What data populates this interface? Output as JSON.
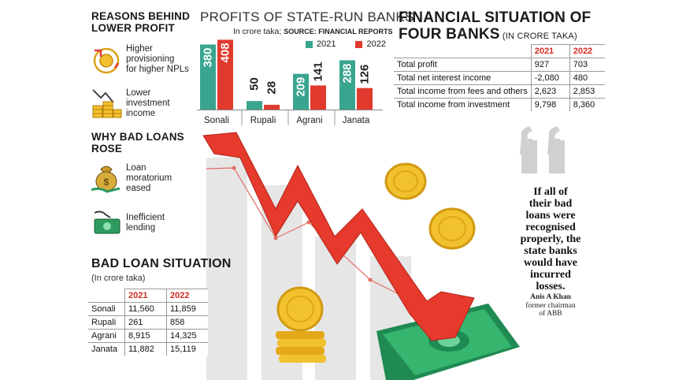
{
  "left": {
    "reasons_title_1": "REASONS BEHIND",
    "reasons_title_2": "LOWER PROFIT",
    "reasons": [
      {
        "icon": "provisioning-icon",
        "text_1": "Higher",
        "text_2": "provisioning",
        "text_3": "for higher NPLs"
      },
      {
        "icon": "coin-stack-icon",
        "text_1": "Lower",
        "text_2": "investment",
        "text_3": "income"
      }
    ],
    "why_title_1": "WHY BAD LOANS",
    "why_title_2": "ROSE",
    "why": [
      {
        "icon": "money-bag-icon",
        "text_1": "Loan",
        "text_2": "moratorium",
        "text_3": "eased"
      },
      {
        "icon": "cash-hand-icon",
        "text_1": "Inefficient",
        "text_2": "lending"
      }
    ]
  },
  "bad_loan": {
    "title": "BAD LOAN SITUATION",
    "subtitle": "(In crore taka)",
    "years": [
      "2021",
      "2022"
    ],
    "rows": [
      {
        "bank": "Sonali",
        "v2021": "11,560",
        "v2022": "11,859"
      },
      {
        "bank": "Rupali",
        "v2021": "261",
        "v2022": "858"
      },
      {
        "bank": "Agrani",
        "v2021": "8,915",
        "v2022": "14,325"
      },
      {
        "bank": "Janata",
        "v2021": "11,882",
        "v2022": "15,119"
      }
    ]
  },
  "chart_data": {
    "type": "bar",
    "title": "PROFITS OF STATE-RUN BANKS",
    "subtitle_plain": "In crore taka; ",
    "subtitle_source": "SOURCE: FINANCIAL REPORTS",
    "categories": [
      "Sonali",
      "Rupali",
      "Agrani",
      "Janata"
    ],
    "series": [
      {
        "name": "2021",
        "color": "#3aa58f",
        "values": [
          380,
          50,
          209,
          288
        ]
      },
      {
        "name": "2022",
        "color": "#e03a2e",
        "values": [
          408,
          28,
          141,
          126
        ]
      }
    ],
    "ylim": [
      0,
      410
    ],
    "legend": "top-right"
  },
  "financial": {
    "title_1": "FINANCIAL SITUATION OF",
    "title_2": "FOUR BANKS",
    "title_unit": " (IN CRORE TAKA)",
    "years": [
      "2021",
      "2022"
    ],
    "rows": [
      {
        "label": "Total profit",
        "v2021": "927",
        "v2022": "703"
      },
      {
        "label": "Total net interest income",
        "v2021": "-2,080",
        "v2022": "480"
      },
      {
        "label": "Total income from fees and others",
        "v2021": "2,623",
        "v2022": "2,853"
      },
      {
        "label": "Total income from investment",
        "v2021": "9,798",
        "v2022": "8,360"
      }
    ]
  },
  "quote": {
    "lines": [
      "If all of",
      "their bad",
      "loans were",
      "recognised",
      "properly, the",
      "state banks",
      "would have",
      "incurred",
      "losses."
    ],
    "author": "Anis A Khan",
    "role_1": "former chairman",
    "role_2": "of ABB"
  },
  "colors": {
    "teal": "#3aa58f",
    "red": "#e03a2e",
    "year_red": "#d32b23",
    "gold": "#f2c12e",
    "cash": "#2e9a5f"
  }
}
